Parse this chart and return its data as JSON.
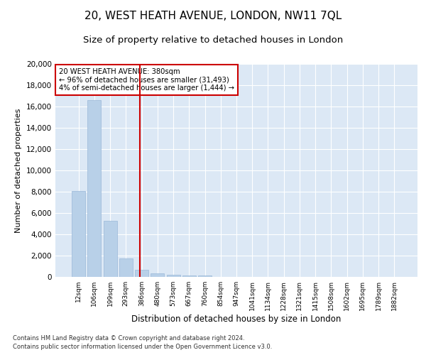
{
  "title": "20, WEST HEATH AVENUE, LONDON, NW11 7QL",
  "subtitle": "Size of property relative to detached houses in London",
  "xlabel": "Distribution of detached houses by size in London",
  "ylabel": "Number of detached properties",
  "footnote1": "Contains HM Land Registry data © Crown copyright and database right 2024.",
  "footnote2": "Contains public sector information licensed under the Open Government Licence v3.0.",
  "bin_labels": [
    "12sqm",
    "106sqm",
    "199sqm",
    "293sqm",
    "386sqm",
    "480sqm",
    "573sqm",
    "667sqm",
    "760sqm",
    "854sqm",
    "947sqm",
    "1041sqm",
    "1134sqm",
    "1228sqm",
    "1321sqm",
    "1415sqm",
    "1508sqm",
    "1602sqm",
    "1695sqm",
    "1789sqm",
    "1882sqm"
  ],
  "bar_values": [
    8100,
    16600,
    5300,
    1750,
    650,
    330,
    190,
    160,
    130,
    0,
    0,
    0,
    0,
    0,
    0,
    0,
    0,
    0,
    0,
    0,
    0
  ],
  "bar_color": "#b8d0e8",
  "bar_edge_color": "#9ab8d8",
  "vline_x": 3.87,
  "vline_color": "#cc0000",
  "annotation_text": "20 WEST HEATH AVENUE: 380sqm\n← 96% of detached houses are smaller (31,493)\n4% of semi-detached houses are larger (1,444) →",
  "annotation_box_color": "#ffffff",
  "annotation_box_edge": "#cc0000",
  "ylim": [
    0,
    20000
  ],
  "yticks": [
    0,
    2000,
    4000,
    6000,
    8000,
    10000,
    12000,
    14000,
    16000,
    18000,
    20000
  ],
  "background_color": "#dce8f5",
  "grid_color": "#ffffff",
  "title_fontsize": 11,
  "subtitle_fontsize": 9.5
}
